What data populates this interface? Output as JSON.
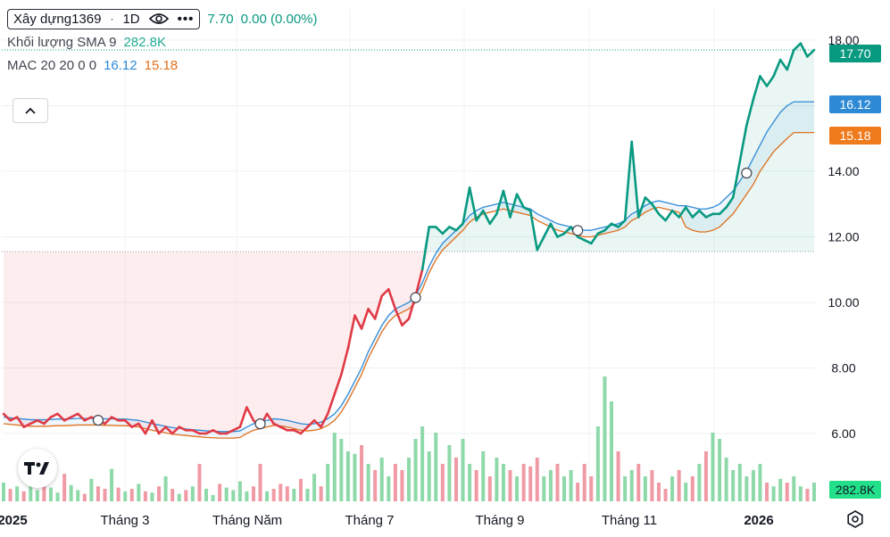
{
  "legend": {
    "symbol": "Xây dựng1369",
    "dot": "·",
    "interval": "1D",
    "more": "•••",
    "price_tail": "7.70",
    "change": "0.00 (0.00%)",
    "volume_label": "Khối lượng SMA 9",
    "volume_value": "282.8K",
    "mac_label": "MAC 20 20 0 0",
    "mac_upper": "16.12",
    "mac_lower": "15.18"
  },
  "badges": {
    "price": "17.70",
    "upper": "16.12",
    "lower": "15.18",
    "volume": "282.8K"
  },
  "colors": {
    "up": "#089981",
    "down": "#e03a46",
    "ma_upper": "#2f8ad6",
    "ma_lower": "#e0701d",
    "volume_up": "#8ed9a9",
    "volume_down": "#f09aa5"
  },
  "icons": {
    "eye": "eye-icon",
    "more": "more-icon",
    "collapse": "chevron-up-icon",
    "logo": "tradingview-logo",
    "settings": "gear-icon"
  },
  "chart_data": {
    "type": "line",
    "x_labels": [
      "2025",
      "Tháng 3",
      "Tháng Năm",
      "Tháng 7",
      "Tháng 9",
      "Tháng 11",
      "2026"
    ],
    "y_ticks": [
      "18.00",
      "14.00",
      "12.00",
      "10.00",
      "8.00",
      "6.00"
    ],
    "ylim": [
      4.2,
      18.3
    ],
    "baseline": 11.55,
    "x_range": [
      0,
      100
    ],
    "series": [
      {
        "name": "Xây dựng1369",
        "x": [
          0,
          1,
          2,
          3,
          4,
          5,
          6,
          7,
          8,
          9,
          10,
          11,
          12,
          13,
          14,
          15,
          16,
          17,
          18,
          19,
          20,
          21,
          22,
          23,
          24,
          25,
          26,
          27,
          28,
          29,
          30,
          31,
          32,
          33,
          34,
          35,
          36,
          37,
          38,
          39,
          40,
          41,
          42,
          43,
          44,
          45,
          46,
          47,
          48,
          49,
          50,
          51,
          52,
          53,
          54,
          55,
          56,
          57,
          58,
          59,
          60,
          61,
          62,
          63,
          64,
          65,
          66,
          67,
          68,
          69,
          70,
          71,
          72,
          73,
          74,
          75,
          76,
          77,
          78,
          79,
          80,
          81,
          82,
          83,
          84,
          85,
          86,
          87,
          88,
          89,
          90,
          91,
          92,
          93,
          94,
          95,
          96,
          97,
          98,
          99,
          100
        ],
        "values": [
          6.6,
          6.4,
          6.5,
          6.2,
          6.3,
          6.4,
          6.3,
          6.5,
          6.6,
          6.4,
          6.5,
          6.6,
          6.4,
          6.5,
          6.4,
          6.3,
          6.5,
          6.4,
          6.4,
          6.2,
          6.3,
          6.0,
          6.4,
          6.0,
          6.2,
          6.0,
          6.2,
          6.1,
          6.1,
          6.0,
          6.0,
          6.1,
          6.0,
          6.0,
          6.1,
          6.2,
          6.8,
          6.4,
          6.2,
          6.6,
          6.3,
          6.2,
          6.1,
          6.1,
          6.0,
          6.2,
          6.4,
          6.2,
          6.6,
          7.2,
          7.8,
          8.6,
          9.6,
          9.2,
          9.8,
          9.5,
          10.2,
          10.4,
          9.8,
          9.3,
          9.5,
          10.2,
          11.0,
          12.3,
          12.3,
          12.1,
          12.3,
          12.2,
          12.4,
          13.5,
          12.5,
          12.8,
          12.4,
          12.7,
          13.4,
          12.6,
          13.3,
          12.9,
          12.8,
          11.6,
          12.0,
          12.4,
          12.0,
          12.1,
          12.3,
          12.0,
          11.9,
          11.8,
          12.1,
          12.2,
          12.4,
          12.3,
          12.5,
          14.9,
          12.6,
          13.2,
          13.0,
          12.7,
          12.5,
          12.8,
          12.6
        ],
        "extension_x": [
          101,
          102,
          103,
          104,
          105,
          106,
          107,
          108,
          109,
          110,
          111,
          112,
          113,
          114,
          115,
          116,
          117,
          118,
          119,
          120
        ],
        "extension_values": [
          12.9,
          12.6,
          12.8,
          12.6,
          12.7,
          12.7,
          12.9,
          13.2,
          14.3,
          15.4,
          16.2,
          16.9,
          16.6,
          16.9,
          17.4,
          17.1,
          17.7,
          17.9,
          17.5,
          17.7
        ]
      },
      {
        "name": "MAC upper",
        "values": [
          6.5,
          6.48,
          6.46,
          6.44,
          6.42,
          6.42,
          6.42,
          6.43,
          6.44,
          6.44,
          6.45,
          6.46,
          6.46,
          6.46,
          6.46,
          6.45,
          6.45,
          6.44,
          6.44,
          6.42,
          6.4,
          6.35,
          6.3,
          6.26,
          6.22,
          6.18,
          6.16,
          6.14,
          6.12,
          6.1,
          6.08,
          6.07,
          6.06,
          6.06,
          6.06,
          6.08,
          6.2,
          6.3,
          6.35,
          6.4,
          6.45,
          6.43,
          6.4,
          6.35,
          6.3,
          6.28,
          6.3,
          6.35,
          6.45,
          6.6,
          6.85,
          7.2,
          7.6,
          8.0,
          8.5,
          8.9,
          9.3,
          9.6,
          9.8,
          9.9,
          10.0,
          10.2,
          10.6,
          11.1,
          11.5,
          11.8,
          12.0,
          12.2,
          12.4,
          12.65,
          12.8,
          12.9,
          12.95,
          13.0,
          13.05,
          13.0,
          12.95,
          12.9,
          12.85,
          12.7,
          12.6,
          12.5,
          12.4,
          12.35,
          12.3,
          12.25,
          12.2,
          12.2,
          12.25,
          12.3,
          12.35,
          12.4,
          12.5,
          12.7,
          12.8,
          12.95,
          13.05,
          13.1,
          13.05,
          13.0,
          12.95
        ],
        "extension_values": [
          12.95,
          12.9,
          12.85,
          12.85,
          12.9,
          13.0,
          13.2,
          13.4,
          13.7,
          14.0,
          14.4,
          14.8,
          15.2,
          15.5,
          15.8,
          16.0,
          16.12,
          16.12,
          16.12,
          16.12
        ]
      },
      {
        "name": "MAC lower",
        "values": [
          6.3,
          6.28,
          6.26,
          6.24,
          6.22,
          6.22,
          6.22,
          6.23,
          6.24,
          6.24,
          6.25,
          6.26,
          6.26,
          6.26,
          6.26,
          6.25,
          6.25,
          6.24,
          6.24,
          6.22,
          6.2,
          6.15,
          6.1,
          6.06,
          6.02,
          5.98,
          5.96,
          5.94,
          5.92,
          5.9,
          5.88,
          5.87,
          5.86,
          5.86,
          5.86,
          5.88,
          6.0,
          6.1,
          6.15,
          6.2,
          6.25,
          6.23,
          6.2,
          6.15,
          6.1,
          6.08,
          6.1,
          6.15,
          6.25,
          6.4,
          6.65,
          7.0,
          7.4,
          7.8,
          8.3,
          8.7,
          9.1,
          9.4,
          9.6,
          9.7,
          9.8,
          10.0,
          10.4,
          10.9,
          11.3,
          11.6,
          11.8,
          12.0,
          12.2,
          12.45,
          12.6,
          12.7,
          12.75,
          12.8,
          12.85,
          12.8,
          12.75,
          12.7,
          12.65,
          12.5,
          12.4,
          12.3,
          12.2,
          12.15,
          12.1,
          12.05,
          12.0,
          12.0,
          12.05,
          12.1,
          12.15,
          12.2,
          12.3,
          12.5,
          12.6,
          12.75,
          12.85,
          12.9,
          12.85,
          12.8,
          12.75
        ],
        "extension_values": [
          12.3,
          12.2,
          12.15,
          12.15,
          12.2,
          12.3,
          12.5,
          12.7,
          13.0,
          13.3,
          13.6,
          14.0,
          14.3,
          14.6,
          14.8,
          15.0,
          15.18,
          15.18,
          15.18,
          15.18
        ]
      }
    ],
    "volume": {
      "name": "Khối lượng",
      "values": [
        0.15,
        0.1,
        0.12,
        0.08,
        0.2,
        0.09,
        0.14,
        0.11,
        0.07,
        0.22,
        0.13,
        0.09,
        0.06,
        0.18,
        0.12,
        0.1,
        0.26,
        0.11,
        0.08,
        0.1,
        0.14,
        0.08,
        0.07,
        0.12,
        0.2,
        0.1,
        0.06,
        0.09,
        0.12,
        0.3,
        0.1,
        0.05,
        0.14,
        0.11,
        0.09,
        0.16,
        0.08,
        0.12,
        0.3,
        0.08,
        0.1,
        0.14,
        0.12,
        0.1,
        0.18,
        0.1,
        0.22,
        0.12,
        0.3,
        0.55,
        0.5,
        0.4,
        0.38,
        0.45,
        0.3,
        0.25,
        0.35,
        0.2,
        0.3,
        0.25,
        0.35,
        0.5,
        0.6,
        0.4,
        0.55,
        0.3,
        0.45,
        0.35,
        0.5,
        0.3,
        0.25,
        0.4,
        0.2,
        0.35,
        0.3,
        0.25,
        0.2,
        0.3,
        0.28,
        0.35,
        0.2,
        0.25,
        0.3,
        0.2,
        0.25,
        0.15,
        0.3,
        0.2,
        0.6,
        1.0,
        0.8,
        0.4,
        0.2,
        0.25,
        0.3,
        0.2,
        0.25,
        0.15,
        0.1,
        0.2,
        0.25,
        0.15,
        0.2,
        0.3,
        0.4,
        0.55,
        0.5,
        0.35,
        0.25,
        0.3,
        0.2,
        0.25,
        0.3,
        0.15,
        0.12,
        0.18,
        0.15,
        0.2,
        0.12,
        0.1,
        0.15
      ]
    },
    "markers_x": [
      14,
      38,
      61,
      85,
      110
    ],
    "grid": true
  }
}
